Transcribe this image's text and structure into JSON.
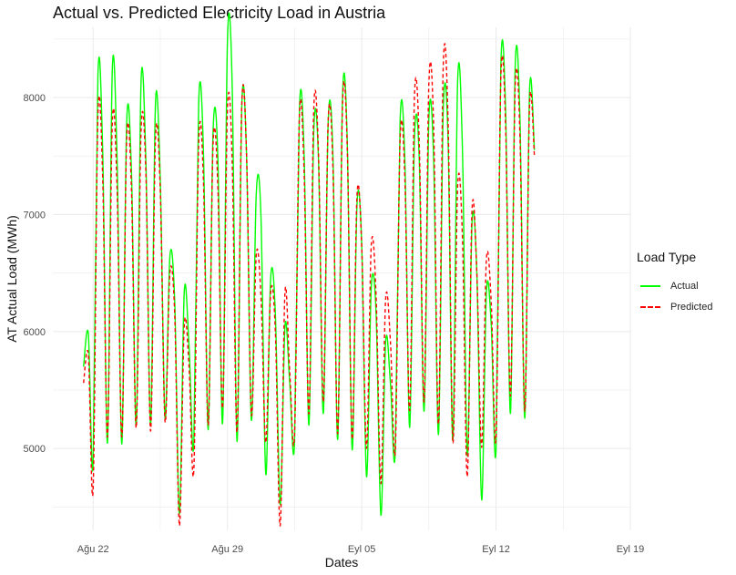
{
  "chart_data": {
    "type": "line",
    "title": "Actual vs. Predicted Electricity Load in Austria",
    "xlabel": "Dates",
    "ylabel": "AT Actual Load (MWh)",
    "x_tick_labels": [
      "Ağu 22",
      "Ağu 29",
      "Eyl 05",
      "Eyl 12",
      "Eyl 19"
    ],
    "y_ticks": [
      5000,
      6000,
      7000,
      8000
    ],
    "xlim_days": [
      -2.1,
      28.0
    ],
    "ylim": [
      4300,
      8600
    ],
    "grid": true,
    "legend": {
      "title": "Load Type",
      "placement": "right",
      "items": [
        "Actual",
        "Predicted"
      ]
    },
    "colors": {
      "actual": "#00ff00",
      "predicted": "#ff0000",
      "grid": "#ebebeb"
    },
    "series": [
      {
        "name": "Actual",
        "x_start_day": -0.5,
        "step_hours": 6,
        "values": [
          5700,
          5980,
          4870,
          8190,
          7520,
          5050,
          8240,
          7450,
          5040,
          7790,
          7350,
          5200,
          8140,
          7440,
          5210,
          7950,
          7290,
          5260,
          6640,
          6260,
          4440,
          6340,
          5880,
          5050,
          7950,
          7550,
          5160,
          7700,
          7500,
          5220,
          8480,
          8100,
          5060,
          7940,
          7500,
          5240,
          7170,
          6980,
          4780,
          6450,
          6150,
          4520,
          6050,
          5560,
          5060,
          7890,
          7500,
          5200,
          7720,
          7450,
          5300,
          7790,
          7500,
          5080,
          8020,
          7600,
          4990,
          7080,
          6740,
          4760,
          6380,
          6150,
          4430,
          5920,
          5550,
          4980,
          7790,
          7450,
          5180,
          7650,
          7460,
          5320,
          7820,
          7460,
          5120,
          7900,
          7640,
          5070,
          8140,
          7550,
          4940,
          6930,
          6500,
          4560,
          6340,
          6060,
          4990,
          8270,
          7880,
          5300,
          8270,
          7800,
          5260,
          8070,
          7550
        ]
      },
      {
        "name": "Predicted",
        "x_start_day": -0.5,
        "step_hours": 6,
        "values": [
          5560,
          5800,
          4650,
          7850,
          7300,
          5100,
          7790,
          7200,
          5100,
          7650,
          7200,
          5180,
          7720,
          7350,
          5150,
          7650,
          7200,
          5230,
          6500,
          6150,
          4340,
          6050,
          5700,
          4820,
          7600,
          7300,
          5200,
          7600,
          7250,
          5350,
          7900,
          7450,
          5140,
          7950,
          7500,
          5290,
          6650,
          6300,
          5050,
          6330,
          6000,
          4340,
          6340,
          5650,
          5130,
          7850,
          7350,
          5300,
          7910,
          7500,
          5400,
          7800,
          7400,
          5130,
          7960,
          7550,
          5080,
          7160,
          6720,
          5000,
          6740,
          6300,
          4700,
          6280,
          5900,
          4990,
          7640,
          7300,
          5330,
          8010,
          7600,
          5400,
          8120,
          7750,
          5210,
          8270,
          7800,
          5050,
          7240,
          6800,
          4760,
          7040,
          6500,
          5010,
          6620,
          6250,
          5100,
          8170,
          7750,
          5450,
          8100,
          7650,
          5320,
          7950,
          7500
        ]
      }
    ]
  }
}
